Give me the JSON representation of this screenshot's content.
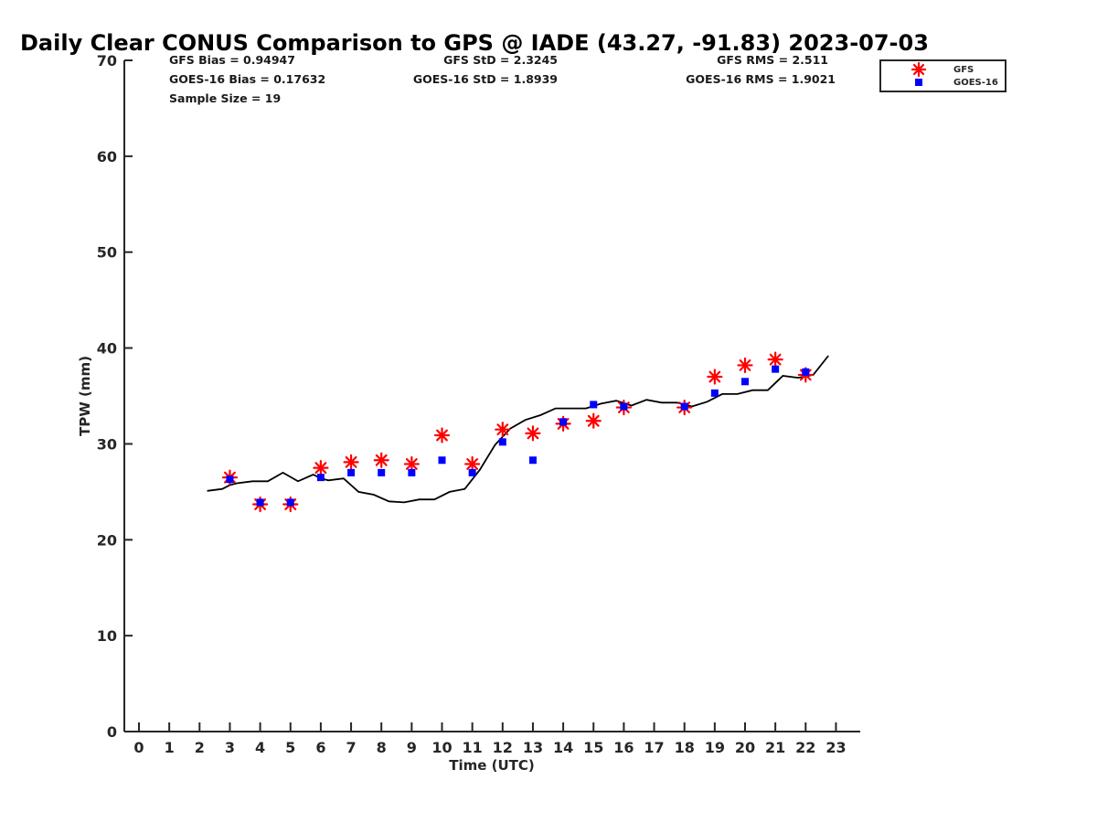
{
  "chart_data": {
    "type": "scatter",
    "title": "Daily Clear CONUS Comparison to GPS @ IADE (43.27, -91.83) 2023-07-03",
    "xlabel": "Time (UTC)",
    "ylabel": "TPW (mm)",
    "xlim": [
      -0.5,
      23.7
    ],
    "ylim": [
      0,
      70
    ],
    "xticks": [
      0,
      1,
      2,
      3,
      4,
      5,
      6,
      7,
      8,
      9,
      10,
      11,
      12,
      13,
      14,
      15,
      16,
      17,
      18,
      19,
      20,
      21,
      22,
      23
    ],
    "yticks": [
      0,
      10,
      20,
      30,
      40,
      50,
      60,
      70
    ],
    "stats": {
      "gfs_bias": "GFS Bias = 0.94947",
      "goes_bias": "GOES-16 Bias = 0.17632",
      "sample_size": "Sample Size = 19",
      "gfs_std": "GFS StD = 2.3245",
      "goes_std": "GOES-16 StD = 1.8939",
      "gfs_rms": "GFS RMS = 2.511",
      "goes_rms": "GOES-16 RMS = 1.9021"
    },
    "legend": {
      "position": "top-right",
      "entries": [
        "GFS",
        "GOES-16"
      ]
    },
    "series": [
      {
        "name": "GPS",
        "style": "line",
        "color": "#000000",
        "x": [
          2.25,
          2.75,
          3.0,
          3.25,
          3.75,
          4.25,
          4.75,
          5.25,
          5.75,
          6.0,
          6.25,
          6.75,
          7.25,
          7.75,
          8.25,
          8.75,
          9.25,
          9.75,
          10.25,
          10.75,
          11.25,
          11.75,
          12.25,
          12.75,
          13.25,
          13.75,
          14.25,
          14.75,
          15.25,
          15.75,
          16.25,
          16.75,
          17.25,
          17.75,
          18.25,
          18.75,
          19.25,
          19.75,
          20.25,
          20.75,
          21.25,
          21.75,
          22.25,
          22.75
        ],
        "y": [
          25.1,
          25.3,
          25.7,
          25.9,
          26.1,
          26.1,
          27.0,
          26.1,
          26.8,
          26.4,
          26.2,
          26.4,
          25.0,
          24.7,
          24.0,
          23.9,
          24.2,
          24.2,
          25.0,
          25.3,
          27.3,
          29.9,
          31.6,
          32.5,
          33.0,
          33.7,
          33.7,
          33.7,
          34.2,
          34.5,
          34.0,
          34.6,
          34.3,
          34.3,
          33.9,
          34.4,
          35.2,
          35.2,
          35.6,
          35.6,
          37.1,
          36.9,
          37.2,
          39.2
        ]
      },
      {
        "name": "GFS",
        "style": "asterisk",
        "color": "#ff0000",
        "x": [
          3,
          4,
          5,
          6,
          7,
          8,
          9,
          10,
          11,
          12,
          13,
          14,
          15,
          16,
          18,
          19,
          20,
          21,
          22
        ],
        "y": [
          26.5,
          23.7,
          23.7,
          27.5,
          28.1,
          28.3,
          27.9,
          30.9,
          27.9,
          31.5,
          31.1,
          32.1,
          32.4,
          33.8,
          33.8,
          37.0,
          38.2,
          38.8,
          37.2
        ]
      },
      {
        "name": "GOES-16",
        "style": "square",
        "color": "#0000ff",
        "x": [
          3,
          4,
          5,
          6,
          7,
          8,
          9,
          10,
          11,
          12,
          13,
          14,
          15,
          16,
          18,
          19,
          20,
          21,
          22
        ],
        "y": [
          26.3,
          23.9,
          23.9,
          26.5,
          27.0,
          27.0,
          27.0,
          28.3,
          27.0,
          30.2,
          28.3,
          32.3,
          34.1,
          33.9,
          33.9,
          35.3,
          36.5,
          37.8,
          37.5
        ]
      }
    ]
  }
}
